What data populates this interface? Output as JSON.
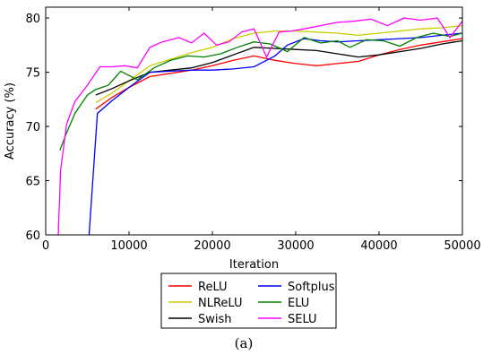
{
  "chart_data": {
    "type": "line",
    "caption": "(a)",
    "xlabel": "Iteration",
    "ylabel": "Accuracy (%)",
    "xlim": [
      0,
      50000
    ],
    "ylim": [
      60,
      81
    ],
    "xticks": [
      0,
      10000,
      20000,
      30000,
      40000,
      50000
    ],
    "yticks": [
      60,
      65,
      70,
      75,
      80
    ],
    "grid": false,
    "legend_position": "below",
    "series": [
      {
        "name": "ReLU",
        "color": "#ff0000",
        "x": [
          6000,
          8000,
          10000,
          12500,
          15000,
          17500,
          20000,
          22500,
          25000,
          27500,
          30000,
          32500,
          35000,
          37500,
          40000,
          42500,
          45000,
          47500,
          50000
        ],
        "y": [
          71.6,
          72.7,
          73.6,
          74.6,
          74.9,
          75.2,
          75.6,
          76.1,
          76.5,
          76.1,
          75.8,
          75.6,
          75.8,
          76.0,
          76.6,
          77.1,
          77.5,
          77.8,
          78.1
        ]
      },
      {
        "name": "NLReLU",
        "color": "#cccc00",
        "x": [
          6000,
          8000,
          10000,
          12500,
          15000,
          17500,
          20000,
          22500,
          25000,
          27500,
          30000,
          32500,
          35000,
          37500,
          40000,
          42500,
          45000,
          47500,
          50000
        ],
        "y": [
          72.2,
          73.1,
          74.2,
          75.6,
          76.2,
          76.8,
          77.3,
          78.1,
          78.6,
          78.8,
          78.8,
          78.7,
          78.6,
          78.4,
          78.6,
          78.8,
          79.0,
          79.1,
          79.3
        ]
      },
      {
        "name": "Swish",
        "color": "#000000",
        "x": [
          6000,
          8000,
          10000,
          12500,
          15000,
          17500,
          20000,
          22500,
          25000,
          27500,
          30000,
          32500,
          35000,
          37500,
          40000,
          42500,
          45000,
          47500,
          50000
        ],
        "y": [
          72.9,
          73.5,
          74.2,
          75.0,
          75.2,
          75.4,
          75.9,
          76.6,
          77.3,
          77.2,
          77.1,
          77.0,
          76.7,
          76.4,
          76.6,
          76.9,
          77.2,
          77.6,
          77.9
        ]
      },
      {
        "name": "Softplus",
        "color": "#0000ff",
        "x": [
          5200,
          6200,
          8000,
          10000,
          12500,
          15000,
          17500,
          20000,
          22500,
          25000,
          27500,
          29000,
          31000,
          33000,
          35000,
          37500,
          40000,
          42500,
          45000,
          47500,
          50000
        ],
        "y": [
          60,
          71.2,
          72.4,
          73.6,
          75.0,
          75.1,
          75.2,
          75.2,
          75.3,
          75.5,
          76.5,
          77.5,
          78.1,
          77.9,
          77.8,
          77.9,
          78.0,
          78.1,
          78.2,
          78.4,
          78.6
        ]
      },
      {
        "name": "ELU",
        "color": "#008000",
        "x": [
          1700,
          2500,
          3500,
          5000,
          6000,
          7500,
          9000,
          11000,
          13000,
          15000,
          17000,
          19000,
          21000,
          23000,
          25000,
          27000,
          29000,
          31000,
          33000,
          35000,
          36500,
          38500,
          40500,
          42500,
          44500,
          46500,
          48500,
          50000
        ],
        "y": [
          67.8,
          69.4,
          71.2,
          72.9,
          73.4,
          73.8,
          75.1,
          74.3,
          75.4,
          76.1,
          76.5,
          76.4,
          76.7,
          77.3,
          77.8,
          77.6,
          76.9,
          78.2,
          77.7,
          77.9,
          77.3,
          78.0,
          77.9,
          77.4,
          78.2,
          78.6,
          78.3,
          78.6
        ]
      },
      {
        "name": "SELU",
        "color": "#ff00ff",
        "x": [
          1500,
          1800,
          2500,
          3500,
          5000,
          6500,
          8000,
          9500,
          11000,
          12500,
          14000,
          16000,
          17500,
          19000,
          20500,
          22000,
          23500,
          25000,
          26500,
          28000,
          29500,
          31000,
          33000,
          35000,
          37000,
          39000,
          41000,
          43000,
          45000,
          47000,
          48500,
          50000
        ],
        "y": [
          60,
          66.0,
          70.2,
          72.3,
          73.8,
          75.5,
          75.5,
          75.6,
          75.4,
          77.3,
          77.8,
          78.2,
          77.7,
          78.6,
          77.5,
          77.8,
          78.7,
          79.0,
          76.4,
          78.7,
          78.8,
          79.0,
          79.3,
          79.6,
          79.7,
          79.9,
          79.3,
          80.0,
          79.8,
          80.0,
          78.2,
          79.7
        ]
      }
    ]
  }
}
